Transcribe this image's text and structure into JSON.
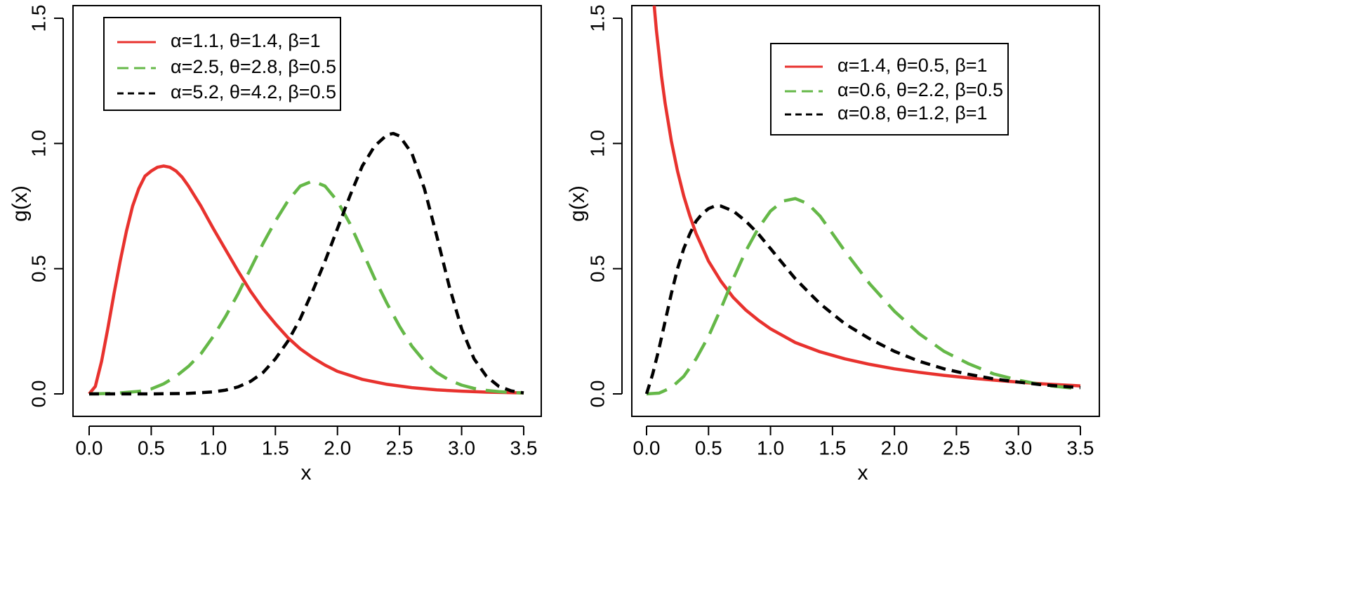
{
  "chart_data": [
    {
      "type": "line",
      "title": "",
      "xlabel": "x",
      "ylabel": "g(x)",
      "xlim": [
        0,
        3.5
      ],
      "ylim": [
        0,
        1.5
      ],
      "x_ticks": [
        0,
        0.5,
        1,
        1.5,
        2,
        2.5,
        3,
        3.5
      ],
      "x_tick_labels": [
        "0.0",
        "0.5",
        "1.0",
        "1.5",
        "2.0",
        "2.5",
        "3.0",
        "3.5"
      ],
      "y_ticks": [
        0,
        0.5,
        1,
        1.5
      ],
      "y_tick_labels": [
        "0.0",
        "0.5",
        "1.0",
        "1.5"
      ],
      "grid": false,
      "legend_position": "top-left",
      "series": [
        {
          "name": "α=1.1, θ=1.4, β=1",
          "color": "#e8322e",
          "style": "solid",
          "x": [
            0,
            0.05,
            0.1,
            0.15,
            0.2,
            0.25,
            0.3,
            0.35,
            0.4,
            0.45,
            0.5,
            0.55,
            0.6,
            0.65,
            0.7,
            0.75,
            0.8,
            0.85,
            0.9,
            0.95,
            1.0,
            1.1,
            1.2,
            1.3,
            1.4,
            1.5,
            1.6,
            1.7,
            1.8,
            1.9,
            2.0,
            2.2,
            2.4,
            2.6,
            2.8,
            3.0,
            3.2,
            3.5
          ],
          "y": [
            0,
            0.03,
            0.13,
            0.26,
            0.4,
            0.53,
            0.65,
            0.75,
            0.82,
            0.87,
            0.89,
            0.905,
            0.91,
            0.905,
            0.89,
            0.865,
            0.83,
            0.79,
            0.75,
            0.705,
            0.66,
            0.575,
            0.49,
            0.41,
            0.34,
            0.28,
            0.225,
            0.18,
            0.145,
            0.115,
            0.09,
            0.058,
            0.038,
            0.025,
            0.016,
            0.011,
            0.007,
            0.004
          ]
        },
        {
          "name": "α=2.5, θ=2.8, β=0.5",
          "color": "#65b848",
          "style": "long-dash",
          "x": [
            0,
            0.2,
            0.4,
            0.5,
            0.6,
            0.7,
            0.8,
            0.9,
            1.0,
            1.1,
            1.2,
            1.3,
            1.4,
            1.5,
            1.6,
            1.7,
            1.8,
            1.9,
            2.0,
            2.1,
            2.2,
            2.3,
            2.4,
            2.5,
            2.6,
            2.7,
            2.8,
            2.9,
            3.0,
            3.1,
            3.2,
            3.3,
            3.4,
            3.5
          ],
          "y": [
            0,
            0.002,
            0.01,
            0.02,
            0.04,
            0.07,
            0.11,
            0.16,
            0.23,
            0.31,
            0.4,
            0.5,
            0.6,
            0.69,
            0.77,
            0.83,
            0.85,
            0.83,
            0.77,
            0.68,
            0.57,
            0.46,
            0.36,
            0.27,
            0.19,
            0.13,
            0.085,
            0.055,
            0.035,
            0.022,
            0.014,
            0.009,
            0.006,
            0.004
          ]
        },
        {
          "name": "α=5.2, θ=4.2, β=0.5",
          "color": "#000000",
          "style": "short-dash",
          "x": [
            0,
            0.5,
            0.8,
            1.0,
            1.1,
            1.2,
            1.3,
            1.4,
            1.5,
            1.6,
            1.7,
            1.8,
            1.9,
            2.0,
            2.1,
            2.2,
            2.3,
            2.4,
            2.45,
            2.5,
            2.6,
            2.7,
            2.8,
            2.9,
            3.0,
            3.1,
            3.2,
            3.3,
            3.4,
            3.5
          ],
          "y": [
            0,
            0,
            0.002,
            0.008,
            0.015,
            0.028,
            0.05,
            0.085,
            0.14,
            0.21,
            0.3,
            0.41,
            0.53,
            0.66,
            0.79,
            0.91,
            0.99,
            1.035,
            1.04,
            1.03,
            0.96,
            0.82,
            0.63,
            0.43,
            0.26,
            0.14,
            0.07,
            0.03,
            0.012,
            0.004
          ]
        }
      ]
    },
    {
      "type": "line",
      "title": "",
      "xlabel": "x",
      "ylabel": "g(x)",
      "xlim": [
        0,
        3.5
      ],
      "ylim": [
        0,
        1.5
      ],
      "x_ticks": [
        0,
        0.5,
        1,
        1.5,
        2,
        2.5,
        3,
        3.5
      ],
      "x_tick_labels": [
        "0.0",
        "0.5",
        "1.0",
        "1.5",
        "2.0",
        "2.5",
        "3.0",
        "3.5"
      ],
      "y_ticks": [
        0,
        0.5,
        1,
        1.5
      ],
      "y_tick_labels": [
        "0.0",
        "0.5",
        "1.0",
        "1.5"
      ],
      "grid": false,
      "legend_position": "top-right",
      "series": [
        {
          "name": "α=1.4, θ=0.5, β=1",
          "color": "#e8322e",
          "style": "solid",
          "x": [
            0.06,
            0.08,
            0.1,
            0.12,
            0.15,
            0.2,
            0.25,
            0.3,
            0.35,
            0.4,
            0.5,
            0.6,
            0.7,
            0.8,
            0.9,
            1.0,
            1.2,
            1.4,
            1.6,
            1.8,
            2.0,
            2.2,
            2.4,
            2.6,
            2.8,
            3.0,
            3.2,
            3.5
          ],
          "y": [
            1.56,
            1.45,
            1.36,
            1.27,
            1.16,
            1.01,
            0.89,
            0.79,
            0.71,
            0.64,
            0.53,
            0.45,
            0.385,
            0.335,
            0.295,
            0.26,
            0.205,
            0.168,
            0.14,
            0.118,
            0.1,
            0.086,
            0.074,
            0.064,
            0.055,
            0.047,
            0.04,
            0.032
          ]
        },
        {
          "name": "α=0.6, θ=2.2, β=0.5",
          "color": "#65b848",
          "style": "long-dash",
          "x": [
            0,
            0.1,
            0.2,
            0.3,
            0.4,
            0.5,
            0.6,
            0.7,
            0.8,
            0.9,
            1.0,
            1.1,
            1.2,
            1.3,
            1.4,
            1.5,
            1.6,
            1.8,
            2.0,
            2.2,
            2.4,
            2.6,
            2.8,
            3.0,
            3.2,
            3.5
          ],
          "y": [
            0,
            0.003,
            0.025,
            0.07,
            0.14,
            0.23,
            0.34,
            0.46,
            0.57,
            0.66,
            0.73,
            0.77,
            0.78,
            0.76,
            0.71,
            0.64,
            0.57,
            0.44,
            0.33,
            0.24,
            0.17,
            0.12,
            0.08,
            0.055,
            0.035,
            0.02
          ]
        },
        {
          "name": "α=0.8, θ=1.2, β=1",
          "color": "#000000",
          "style": "short-dash",
          "x": [
            0,
            0.05,
            0.1,
            0.15,
            0.2,
            0.25,
            0.3,
            0.35,
            0.4,
            0.45,
            0.5,
            0.55,
            0.6,
            0.65,
            0.7,
            0.8,
            0.9,
            1.0,
            1.1,
            1.2,
            1.3,
            1.4,
            1.5,
            1.6,
            1.8,
            2.0,
            2.2,
            2.4,
            2.6,
            2.8,
            3.0,
            3.2,
            3.5
          ],
          "y": [
            0,
            0.08,
            0.18,
            0.29,
            0.4,
            0.5,
            0.58,
            0.64,
            0.69,
            0.72,
            0.74,
            0.75,
            0.75,
            0.74,
            0.73,
            0.69,
            0.64,
            0.58,
            0.52,
            0.46,
            0.41,
            0.36,
            0.32,
            0.28,
            0.22,
            0.17,
            0.13,
            0.1,
            0.078,
            0.06,
            0.047,
            0.036,
            0.025
          ]
        }
      ]
    }
  ]
}
